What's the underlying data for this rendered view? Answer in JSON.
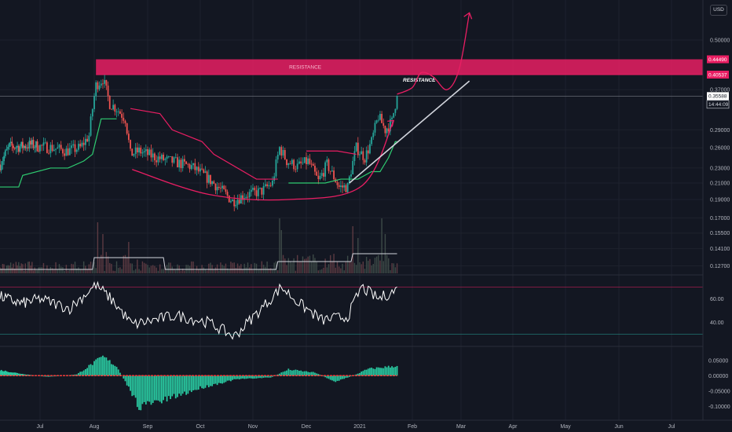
{
  "currency_label": "USD",
  "colors": {
    "background": "#131722",
    "up": "#26a69a",
    "down": "#ef5350",
    "supertrend_up": "#2ecc71",
    "supertrend_down": "#e91e63",
    "resistance": "#e91e63",
    "arrow": "#e91e63",
    "trendline": "#d1d4dc",
    "volume_ma": "#d1d4dc",
    "rsi": "#ffffff",
    "hist_pos": "#2ee8b6",
    "hist_neg": "#2ee8b6",
    "zero_line": "#ef3b3b"
  },
  "annotations": {
    "resistance_zone_label": "RESISTANCE",
    "resistance_line_label": "RESISTANCE"
  },
  "chart_data": [
    {
      "type": "candlestick",
      "pane": "price",
      "x_axis": {
        "labels": [
          "Jul",
          "Aug",
          "Sep",
          "Oct",
          "Nov",
          "Dec",
          "2021",
          "Feb",
          "Mar",
          "Apr",
          "May",
          "Jun",
          "Jul"
        ],
        "range": [
          "2020-06-15",
          "2021-07-20"
        ]
      },
      "y_axis": {
        "scale": "log",
        "ticks": [
          0.127,
          0.141,
          0.155,
          0.17,
          0.19,
          0.21,
          0.23,
          0.26,
          0.29,
          0.37,
          0.5
        ],
        "tick_labels": [
          "0.12700",
          "0.14100",
          "0.15500",
          "0.17000",
          "0.19000",
          "0.21000",
          "0.23000",
          "0.26000",
          "0.29000",
          "0.37000",
          "0.50000"
        ],
        "range": [
          0.12,
          0.7
        ]
      },
      "price_tags": [
        {
          "label": "0.44490",
          "value": 0.4449,
          "style": "resistance"
        },
        {
          "label": "0.40537",
          "value": 0.40537,
          "style": "resistance"
        },
        {
          "label": "0.35588",
          "value": 0.35588,
          "style": "last"
        },
        {
          "label": "14:44:09",
          "value": 0.3385,
          "style": "countdown"
        }
      ],
      "resistance_zone": [
        0.40537,
        0.4449
      ],
      "price_path": [
        {
          "x": "2020-06-15",
          "y": 0.235
        },
        {
          "x": "2020-06-22",
          "y": 0.262
        },
        {
          "x": "2020-07-01",
          "y": 0.262
        },
        {
          "x": "2020-07-08",
          "y": 0.265
        },
        {
          "x": "2020-07-15",
          "y": 0.262
        },
        {
          "x": "2020-07-22",
          "y": 0.26
        },
        {
          "x": "2020-07-30",
          "y": 0.255
        },
        {
          "x": "2020-08-07",
          "y": 0.26
        },
        {
          "x": "2020-08-12",
          "y": 0.28
        },
        {
          "x": "2020-08-16",
          "y": 0.38
        },
        {
          "x": "2020-08-20",
          "y": 0.395
        },
        {
          "x": "2020-08-24",
          "y": 0.34
        },
        {
          "x": "2020-08-28",
          "y": 0.33
        },
        {
          "x": "2020-09-02",
          "y": 0.31
        },
        {
          "x": "2020-09-05",
          "y": 0.25
        },
        {
          "x": "2020-09-10",
          "y": 0.255
        },
        {
          "x": "2020-09-20",
          "y": 0.245
        },
        {
          "x": "2020-10-01",
          "y": 0.238
        },
        {
          "x": "2020-10-10",
          "y": 0.232
        },
        {
          "x": "2020-10-20",
          "y": 0.215
        },
        {
          "x": "2020-10-28",
          "y": 0.2
        },
        {
          "x": "2020-11-03",
          "y": 0.188
        },
        {
          "x": "2020-11-10",
          "y": 0.195
        },
        {
          "x": "2020-11-20",
          "y": 0.2
        },
        {
          "x": "2020-11-26",
          "y": 0.21
        },
        {
          "x": "2020-11-30",
          "y": 0.26
        },
        {
          "x": "2020-12-04",
          "y": 0.24
        },
        {
          "x": "2020-12-10",
          "y": 0.232
        },
        {
          "x": "2020-12-16",
          "y": 0.24
        },
        {
          "x": "2020-12-22",
          "y": 0.212
        },
        {
          "x": "2020-12-27",
          "y": 0.235
        },
        {
          "x": "2021-01-03",
          "y": 0.205
        },
        {
          "x": "2021-01-08",
          "y": 0.205
        },
        {
          "x": "2021-01-13",
          "y": 0.26
        },
        {
          "x": "2021-01-18",
          "y": 0.245
        },
        {
          "x": "2021-01-22",
          "y": 0.27
        },
        {
          "x": "2021-01-26",
          "y": 0.315
        },
        {
          "x": "2021-01-30",
          "y": 0.29
        },
        {
          "x": "2021-02-03",
          "y": 0.305
        },
        {
          "x": "2021-02-06",
          "y": 0.356
        }
      ],
      "supertrend": {
        "up_segments": [
          [
            {
              "x": "2020-06-15",
              "y": 0.205
            },
            {
              "x": "2020-06-29",
              "y": 0.205
            },
            {
              "x": "2020-07-02",
              "y": 0.22
            },
            {
              "x": "2020-07-21",
              "y": 0.23
            },
            {
              "x": "2020-07-31",
              "y": 0.23
            },
            {
              "x": "2020-08-09",
              "y": 0.24
            },
            {
              "x": "2020-08-14",
              "y": 0.25
            },
            {
              "x": "2020-08-19",
              "y": 0.31
            },
            {
              "x": "2020-08-28",
              "y": 0.31
            }
          ],
          [
            {
              "x": "2020-12-05",
              "y": 0.21
            },
            {
              "x": "2020-12-26",
              "y": 0.21
            },
            {
              "x": "2021-01-04",
              "y": 0.215
            },
            {
              "x": "2021-01-14",
              "y": 0.215
            },
            {
              "x": "2021-01-22",
              "y": 0.225
            },
            {
              "x": "2021-01-27",
              "y": 0.225
            },
            {
              "x": "2021-02-01",
              "y": 0.245
            },
            {
              "x": "2021-02-05",
              "y": 0.27
            },
            {
              "x": "2021-02-06",
              "y": 0.27
            }
          ]
        ],
        "down_segments": [
          [
            {
              "x": "2020-09-05",
              "y": 0.33
            },
            {
              "x": "2020-09-22",
              "y": 0.32
            },
            {
              "x": "2020-09-29",
              "y": 0.29
            },
            {
              "x": "2020-10-16",
              "y": 0.27
            },
            {
              "x": "2020-10-23",
              "y": 0.25
            },
            {
              "x": "2020-11-17",
              "y": 0.215
            },
            {
              "x": "2020-11-29",
              "y": 0.215
            }
          ],
          [
            {
              "x": "2020-12-15",
              "y": 0.255
            },
            {
              "x": "2021-01-02",
              "y": 0.255
            },
            {
              "x": "2021-01-13",
              "y": 0.25
            }
          ]
        ]
      },
      "resistance_line_y": 0.4053,
      "rounded_bottom_points": [
        {
          "x": "2020-09-06",
          "y": 0.228
        },
        {
          "x": "2020-10-20",
          "y": 0.196
        },
        {
          "x": "2020-12-05",
          "y": 0.19
        },
        {
          "x": "2021-01-16",
          "y": 0.206
        },
        {
          "x": "2021-02-04",
          "y": 0.307
        }
      ],
      "trendline": [
        {
          "x": "2021-01-09",
          "y": 0.21
        },
        {
          "x": "2021-03-20",
          "y": 0.39
        }
      ],
      "projection_arrow": [
        {
          "x": "2021-02-06",
          "y": 0.36
        },
        {
          "x": "2021-02-15",
          "y": 0.375
        },
        {
          "x": "2021-02-20",
          "y": 0.41
        },
        {
          "x": "2021-02-27",
          "y": 0.4
        },
        {
          "x": "2021-03-07",
          "y": 0.37
        },
        {
          "x": "2021-03-14",
          "y": 0.42
        },
        {
          "x": "2021-03-20",
          "y": 0.59
        }
      ]
    },
    {
      "type": "bar",
      "pane": "volume",
      "description_series": "volume with moving average"
    },
    {
      "type": "line",
      "pane": "rsi",
      "y_axis": {
        "ticks": [
          40,
          60
        ],
        "tick_labels": [
          "40.00",
          "60.00"
        ],
        "range": [
          25,
          75
        ]
      },
      "bands": [
        30,
        70
      ],
      "path": [
        {
          "x": "2020-06-15",
          "y": 62
        },
        {
          "x": "2020-07-01",
          "y": 56
        },
        {
          "x": "2020-07-15",
          "y": 60
        },
        {
          "x": "2020-08-01",
          "y": 52
        },
        {
          "x": "2020-08-16",
          "y": 72
        },
        {
          "x": "2020-08-26",
          "y": 58
        },
        {
          "x": "2020-09-06",
          "y": 38
        },
        {
          "x": "2020-10-01",
          "y": 46
        },
        {
          "x": "2020-10-20",
          "y": 40
        },
        {
          "x": "2020-11-04",
          "y": 28
        },
        {
          "x": "2020-11-20",
          "y": 52
        },
        {
          "x": "2020-12-01",
          "y": 70
        },
        {
          "x": "2020-12-12",
          "y": 55
        },
        {
          "x": "2020-12-24",
          "y": 42
        },
        {
          "x": "2021-01-08",
          "y": 45
        },
        {
          "x": "2021-01-16",
          "y": 70
        },
        {
          "x": "2021-01-26",
          "y": 60
        },
        {
          "x": "2021-02-06",
          "y": 68
        }
      ]
    },
    {
      "type": "bar",
      "pane": "histogram",
      "y_axis": {
        "ticks": [
          0.05,
          0.0,
          -0.05,
          -0.1
        ],
        "tick_labels": [
          "0.05000",
          "0.00000",
          "-0.05000",
          "-0.10000"
        ],
        "range": [
          -0.125,
          0.075
        ]
      },
      "envelope": [
        {
          "x": "2020-06-15",
          "y": 0.018
        },
        {
          "x": "2020-07-01",
          "y": 0.006
        },
        {
          "x": "2020-07-20",
          "y": -0.004
        },
        {
          "x": "2020-08-05",
          "y": 0.004
        },
        {
          "x": "2020-08-20",
          "y": 0.062
        },
        {
          "x": "2020-08-28",
          "y": 0.03
        },
        {
          "x": "2020-09-10",
          "y": -0.1
        },
        {
          "x": "2020-09-25",
          "y": -0.08
        },
        {
          "x": "2020-10-15",
          "y": -0.04
        },
        {
          "x": "2020-11-05",
          "y": -0.012
        },
        {
          "x": "2020-11-25",
          "y": -0.006
        },
        {
          "x": "2020-12-05",
          "y": 0.02
        },
        {
          "x": "2020-12-20",
          "y": 0.01
        },
        {
          "x": "2021-01-01",
          "y": -0.02
        },
        {
          "x": "2021-01-12",
          "y": 0.002
        },
        {
          "x": "2021-01-20",
          "y": 0.022
        },
        {
          "x": "2021-02-06",
          "y": 0.032
        }
      ]
    }
  ]
}
